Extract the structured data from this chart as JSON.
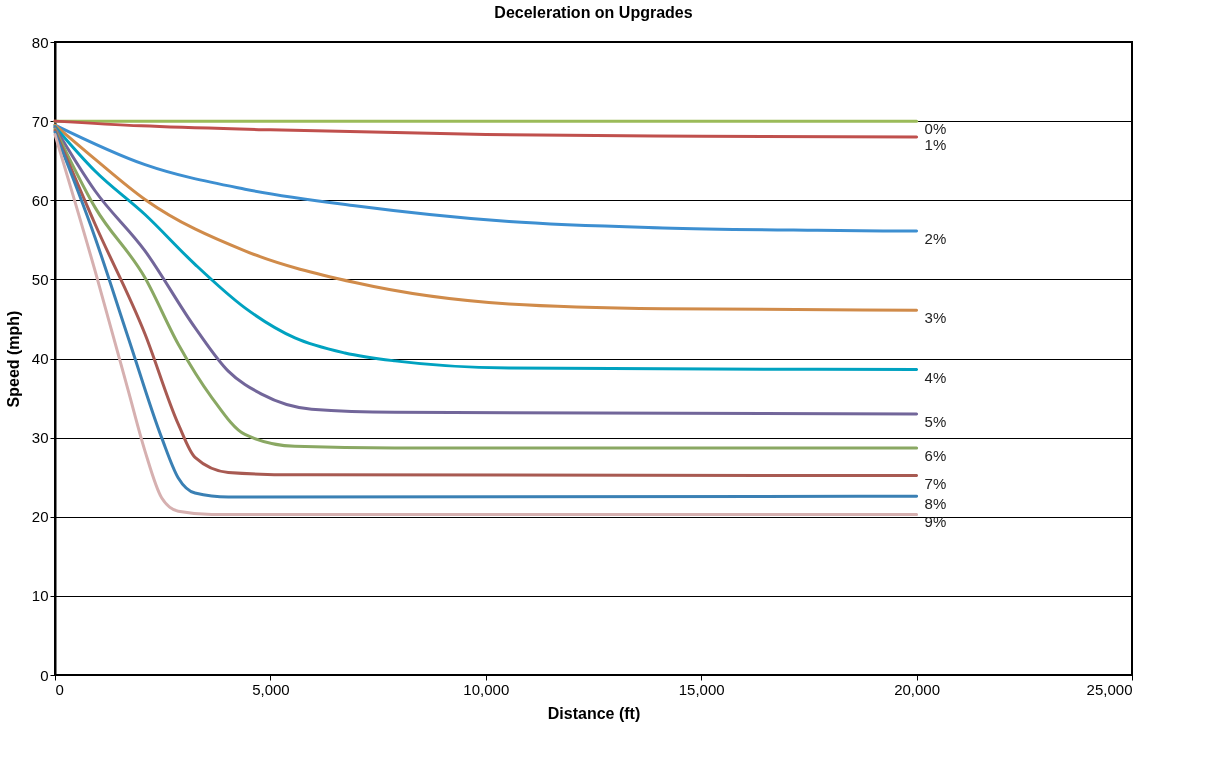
{
  "chart_data": {
    "type": "line",
    "title": "Deceleration on Upgrades",
    "xlabel": "Distance (ft)",
    "ylabel": "Speed (mph)",
    "xlim": [
      0,
      25000
    ],
    "xticks": [
      0,
      {
        "value": 5000,
        "label": "5,000"
      },
      {
        "value": 10000,
        "label": "10,000"
      },
      {
        "value": 15000,
        "label": "15,000"
      },
      {
        "value": 20000,
        "label": "20,000"
      },
      {
        "value": 25000,
        "label": "25,000"
      }
    ],
    "ylim": [
      0,
      80
    ],
    "yticks": [
      0,
      10,
      20,
      30,
      40,
      50,
      60,
      70,
      80
    ],
    "grid": "y",
    "legend": false,
    "marker": "none",
    "line_style": "solid",
    "series": [
      {
        "name": "0%",
        "color": "#9bbb59",
        "x": [
          0,
          5000,
          10000,
          15000,
          20000
        ],
        "values": [
          70,
          70,
          70,
          70,
          70
        ]
      },
      {
        "name": "1%",
        "color": "#c0504d",
        "x": [
          0,
          2000,
          5000,
          10000,
          15000,
          20000
        ],
        "values": [
          70,
          69.4,
          68.9,
          68.3,
          68.1,
          68.0
        ]
      },
      {
        "name": "2%",
        "color": "#3d8fd1",
        "x": [
          0,
          2089,
          4409,
          6963,
          10540,
          14112,
          17690,
          20000
        ],
        "values": [
          69.5,
          64.5,
          61.4,
          59.3,
          57.3,
          56.5,
          56.2,
          56.1
        ]
      },
      {
        "name": "3%",
        "color": "#d08b4a",
        "x": [
          0,
          929,
          2089,
          4409,
          6963,
          10540,
          14112,
          20000
        ],
        "values": [
          69.5,
          65.2,
          60.1,
          53.6,
          49.6,
          46.9,
          46.3,
          46.1
        ]
      },
      {
        "name": "4%",
        "color": "#00a2c0",
        "x": [
          0,
          929,
          2089,
          3250,
          4409,
          5570,
          6730,
          7891,
          10540,
          20000
        ],
        "values": [
          69.3,
          63.7,
          58.2,
          51.9,
          46.4,
          42.6,
          40.7,
          39.7,
          38.8,
          38.6
        ]
      },
      {
        "name": "5%",
        "color": "#72669a",
        "x": [
          0,
          929,
          2089,
          3250,
          4022,
          4796,
          5957,
          7891,
          20000
        ],
        "values": [
          69.2,
          61.2,
          53.6,
          43.9,
          38.4,
          35.5,
          33.6,
          33.2,
          33.0
        ]
      },
      {
        "name": "6%",
        "color": "#8aa863",
        "x": [
          0,
          929,
          2089,
          2862,
          3636,
          4409,
          5570,
          7891,
          20000
        ],
        "values": [
          69.0,
          59.1,
          50.2,
          41.8,
          35.1,
          30.4,
          28.9,
          28.7,
          28.7
        ]
      },
      {
        "name": "7%",
        "color": "#a85a52",
        "x": [
          0,
          929,
          2089,
          2862,
          3250,
          4022,
          5570,
          20000
        ],
        "values": [
          68.8,
          57.0,
          43.1,
          31.7,
          27.5,
          25.6,
          25.3,
          25.2
        ]
      },
      {
        "name": "8%",
        "color": "#3a80b4",
        "x": [
          0,
          929,
          1702,
          2475,
          2862,
          3250,
          4022,
          20000
        ],
        "values": [
          68.6,
          55.3,
          42.6,
          30.0,
          24.9,
          23.0,
          22.5,
          22.6
        ]
      },
      {
        "name": "9%",
        "color": "#d6b0b0",
        "x": [
          0,
          929,
          1702,
          2089,
          2475,
          2862,
          3636,
          20000
        ],
        "values": [
          68.3,
          51.1,
          35.9,
          28.3,
          22.4,
          20.7,
          20.3,
          20.3
        ]
      }
    ]
  }
}
